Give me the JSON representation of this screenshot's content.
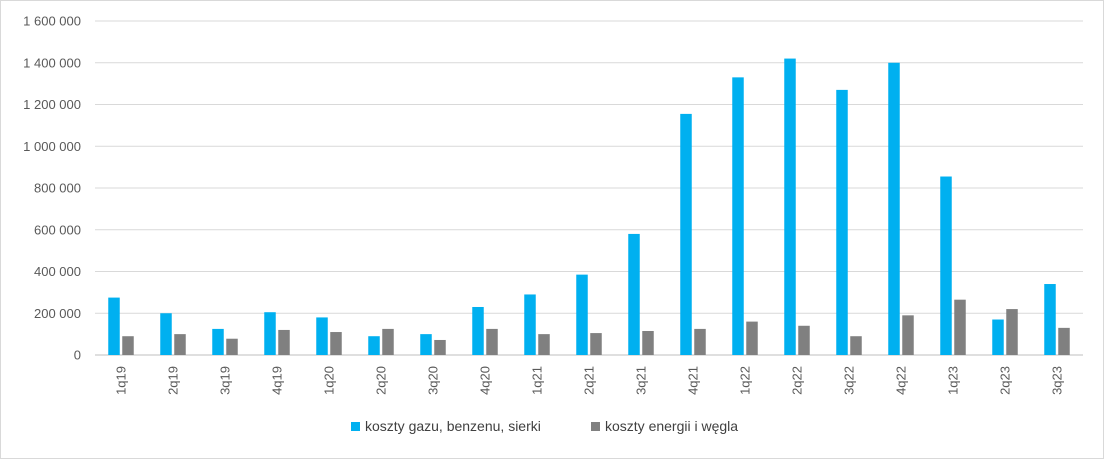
{
  "chart_data": {
    "type": "bar",
    "title": "",
    "xlabel": "",
    "ylabel": "",
    "ylim": [
      0,
      1600000
    ],
    "yticks": [
      0,
      200000,
      400000,
      600000,
      800000,
      1000000,
      1200000,
      1400000,
      1600000
    ],
    "ytick_labels": [
      "0",
      "200 000",
      "400 000",
      "600 000",
      "800 000",
      "1 000 000",
      "1 200 000",
      "1 400 000",
      "1 600 000"
    ],
    "grid": true,
    "legend_position": "bottom",
    "categories": [
      "1q19",
      "2q19",
      "3q19",
      "4q19",
      "1q20",
      "2q20",
      "3q20",
      "4q20",
      "1q21",
      "2q21",
      "3q21",
      "4q21",
      "1q22",
      "2q22",
      "3q22",
      "4q22",
      "1q23",
      "2q23",
      "3q23"
    ],
    "series": [
      {
        "name": "koszty gazu, benzenu, sierki",
        "color": "#00b0f0",
        "values": [
          275000,
          200000,
          125000,
          205000,
          180000,
          90000,
          100000,
          230000,
          290000,
          385000,
          580000,
          1155000,
          1330000,
          1420000,
          1270000,
          1400000,
          855000,
          170000,
          340000
        ]
      },
      {
        "name": "koszty energii i węgla",
        "color": "#808080",
        "values": [
          90000,
          100000,
          78000,
          120000,
          110000,
          125000,
          72000,
          125000,
          100000,
          105000,
          115000,
          125000,
          160000,
          140000,
          90000,
          190000,
          265000,
          220000,
          130000
        ]
      }
    ]
  }
}
